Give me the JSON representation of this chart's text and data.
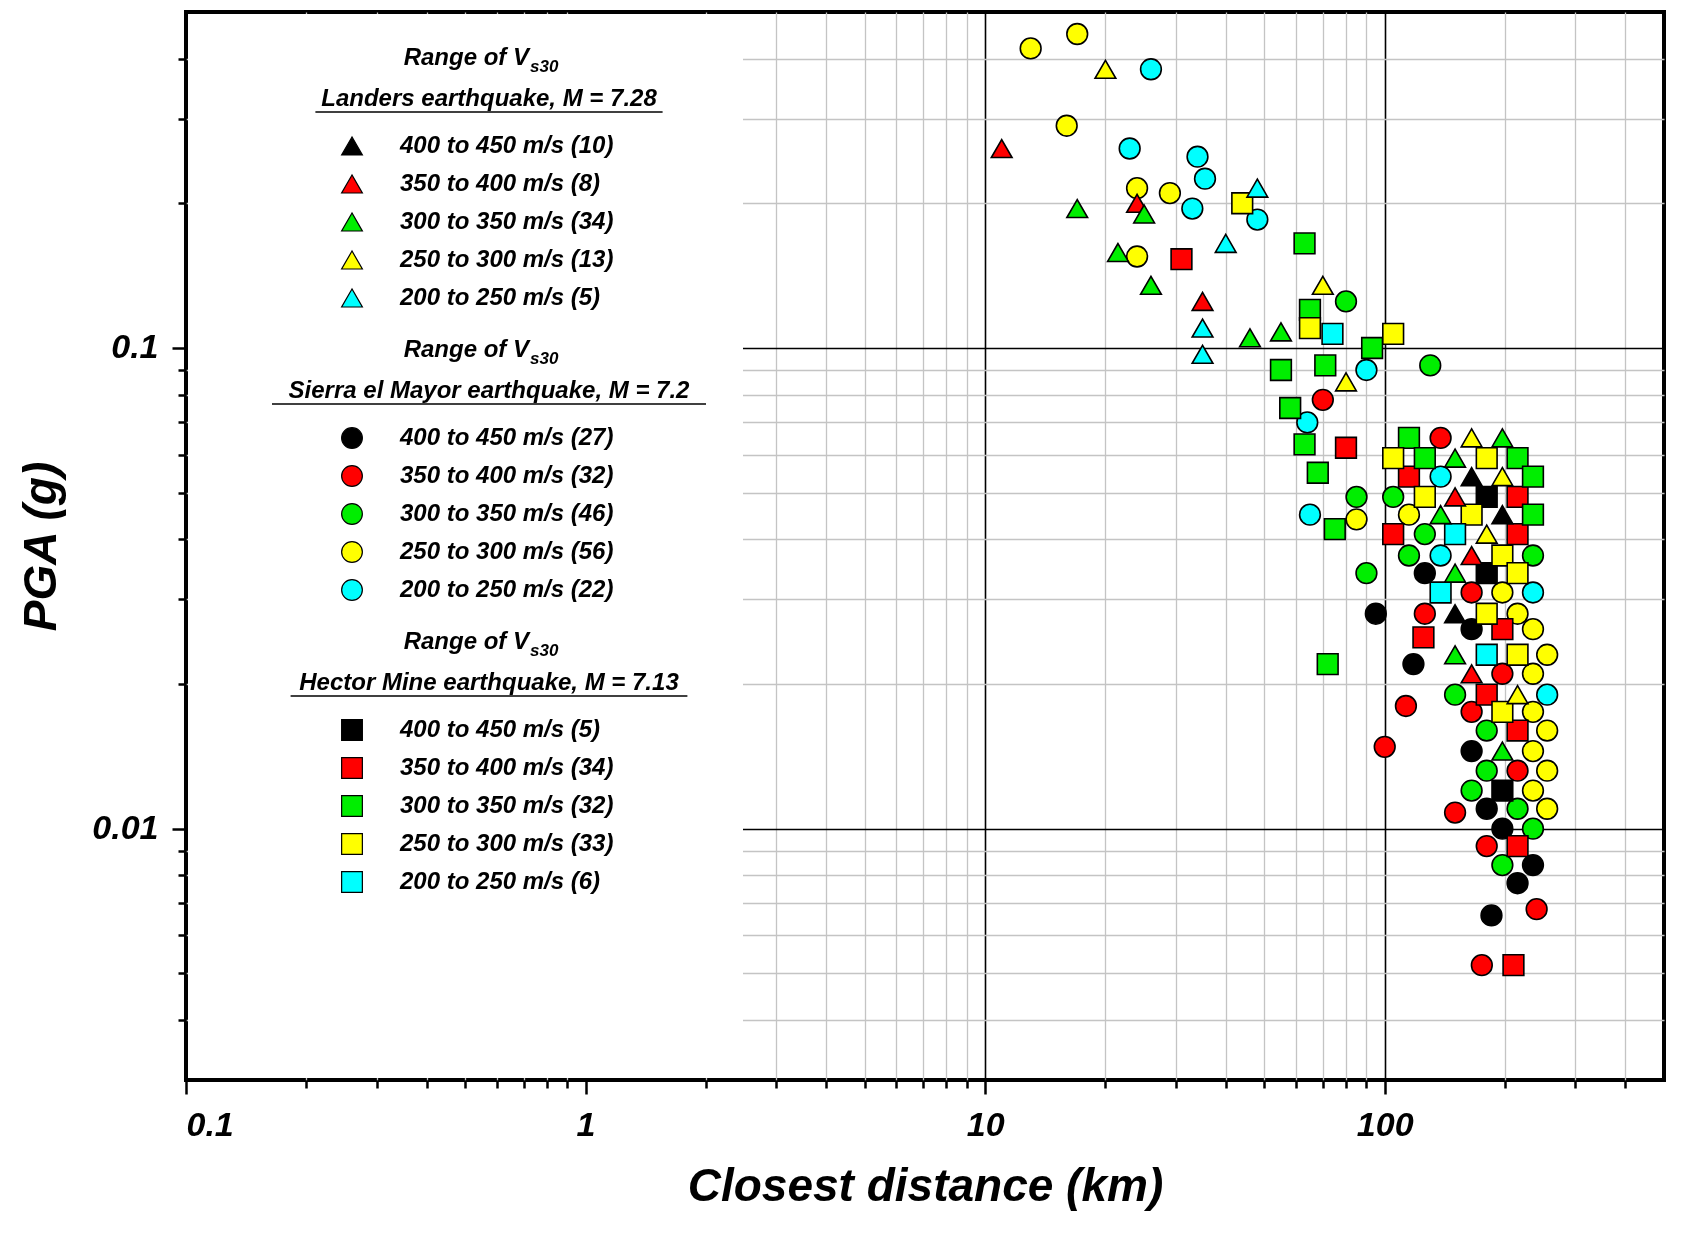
{
  "chart_data": {
    "type": "scatter",
    "xlabel": "Closest distance (km)",
    "ylabel": "PGA (g)",
    "log": "xy",
    "grid": true,
    "legend": "top left",
    "xlim": [
      0.1,
      500
    ],
    "ylim": [
      0.003,
      0.5
    ],
    "xticks": [
      0.1,
      {
        "value": 0.2,
        "label": null
      },
      {
        "value": 0.3,
        "label": null
      },
      {
        "value": 0.4,
        "label": null
      },
      {
        "value": 0.5,
        "label": null
      },
      {
        "value": 0.6,
        "label": null
      },
      {
        "value": 0.7,
        "label": null
      },
      {
        "value": 0.8,
        "label": null
      },
      {
        "value": 0.9,
        "label": null
      },
      1,
      {
        "value": 2,
        "label": null
      },
      {
        "value": 3,
        "label": null
      },
      {
        "value": 4,
        "label": null
      },
      {
        "value": 5,
        "label": null
      },
      {
        "value": 6,
        "label": null
      },
      {
        "value": 7,
        "label": null
      },
      {
        "value": 8,
        "label": null
      },
      {
        "value": 9,
        "label": null
      },
      10,
      {
        "value": 20,
        "label": null
      },
      {
        "value": 30,
        "label": null
      },
      {
        "value": 40,
        "label": null
      },
      {
        "value": 50,
        "label": null
      },
      {
        "value": 60,
        "label": null
      },
      {
        "value": 70,
        "label": null
      },
      {
        "value": 80,
        "label": null
      },
      {
        "value": 90,
        "label": null
      },
      100,
      {
        "value": 200,
        "label": null
      },
      {
        "value": 300,
        "label": null
      },
      {
        "value": 400,
        "label": null
      }
    ],
    "yticks": [
      {
        "value": 0.004,
        "label": null
      },
      {
        "value": 0.005,
        "label": null
      },
      {
        "value": 0.006,
        "label": null
      },
      {
        "value": 0.007,
        "label": null
      },
      {
        "value": 0.008,
        "label": null
      },
      {
        "value": 0.009,
        "label": null
      },
      0.01,
      {
        "value": 0.02,
        "label": null
      },
      {
        "value": 0.03,
        "label": null
      },
      {
        "value": 0.04,
        "label": null
      },
      {
        "value": 0.05,
        "label": null
      },
      {
        "value": 0.06,
        "label": null
      },
      {
        "value": 0.07,
        "label": null
      },
      {
        "value": 0.08,
        "label": null
      },
      {
        "value": 0.09,
        "label": null
      },
      0.1,
      {
        "value": 0.2,
        "label": null
      },
      {
        "value": 0.3,
        "label": null
      },
      {
        "value": 0.4,
        "label": null
      }
    ],
    "annotations": [
      "Range of V$_{s30}$",
      "Landers earthquake, M = 7.28",
      "Range of V$_{s30}$",
      "Sierra el Mayor earthquake, M = 7.2",
      "Range of V$_{s30}$",
      "Hector Mine earthquake, M = 7.13"
    ],
    "series": [
      {
        "name": "400 to 450 m/s (10)",
        "color": "#000000",
        "marker": "triangle",
        "x": [
          165,
          197,
          150
        ],
        "values": [
          0.054,
          0.045,
          0.028
        ]
      },
      {
        "name": "350 to 400 m/s (8)",
        "color": "#ff0000",
        "marker": "triangle",
        "x": [
          11,
          24,
          35,
          150,
          165,
          165
        ],
        "values": [
          0.26,
          0.2,
          0.125,
          0.049,
          0.037,
          0.021
        ]
      },
      {
        "name": "300 to 350 m/s (34)",
        "color": "#00ee00",
        "marker": "triangle",
        "x": [
          17,
          21.5,
          25,
          26,
          46,
          55,
          197,
          150,
          138,
          150,
          150,
          197
        ],
        "values": [
          0.195,
          0.158,
          0.19,
          0.135,
          0.105,
          0.108,
          0.065,
          0.059,
          0.045,
          0.034,
          0.023,
          0.0145
        ]
      },
      {
        "name": "250 to 300 m/s (13)",
        "color": "#ffff00",
        "marker": "triangle",
        "x": [
          20,
          70,
          80,
          165,
          197,
          180,
          215
        ],
        "values": [
          0.38,
          0.135,
          0.085,
          0.065,
          0.054,
          0.041,
          0.019
        ]
      },
      {
        "name": "200 to 250 m/s (5)",
        "color": "#00ffff",
        "marker": "triangle",
        "x": [
          35,
          35,
          40,
          48
        ],
        "values": [
          0.11,
          0.097,
          0.165,
          0.215
        ]
      },
      {
        "name": "400 to 450 m/s (27)",
        "color": "#000000",
        "marker": "circle",
        "x": [
          95,
          118,
          185,
          126,
          165,
          165,
          180,
          197,
          235,
          215
        ],
        "values": [
          0.028,
          0.022,
          0.0066,
          0.034,
          0.026,
          0.0145,
          0.011,
          0.01,
          0.0084,
          0.0077
        ]
      },
      {
        "name": "350 to 400 m/s (32)",
        "color": "#ff0000",
        "marker": "circle",
        "x": [
          70,
          100,
          113,
          150,
          175,
          240,
          138,
          165,
          126,
          197,
          165,
          215,
          180
        ],
        "values": [
          0.078,
          0.0148,
          0.018,
          0.0108,
          0.0052,
          0.0068,
          0.065,
          0.031,
          0.028,
          0.021,
          0.0175,
          0.0132,
          0.0092
        ]
      },
      {
        "name": "300 to 350 m/s (46)",
        "color": "#00ee00",
        "marker": "circle",
        "x": [
          80,
          130,
          90,
          85,
          105,
          126,
          115,
          235,
          150,
          180,
          180,
          165,
          215,
          235,
          197
        ],
        "values": [
          0.125,
          0.092,
          0.034,
          0.049,
          0.049,
          0.041,
          0.037,
          0.037,
          0.019,
          0.016,
          0.0132,
          0.012,
          0.011,
          0.01,
          0.0084
        ]
      },
      {
        "name": "250 to 300 m/s (56)",
        "color": "#ffff00",
        "marker": "circle",
        "x": [
          13,
          17,
          16,
          24,
          24,
          29,
          85,
          115,
          197,
          215,
          235,
          255,
          235,
          235,
          255,
          235,
          255,
          235,
          255
        ],
        "values": [
          0.42,
          0.45,
          0.29,
          0.215,
          0.155,
          0.21,
          0.044,
          0.045,
          0.031,
          0.028,
          0.026,
          0.023,
          0.021,
          0.0175,
          0.016,
          0.0145,
          0.0132,
          0.012,
          0.011
        ]
      },
      {
        "name": "200 to 250 m/s (22)",
        "color": "#00ffff",
        "marker": "circle",
        "x": [
          23,
          26,
          34,
          35.5,
          33,
          48,
          64,
          65,
          90,
          138,
          138,
          235,
          255
        ],
        "values": [
          0.26,
          0.38,
          0.25,
          0.225,
          0.195,
          0.185,
          0.07,
          0.045,
          0.09,
          0.054,
          0.037,
          0.031,
          0.019
        ]
      },
      {
        "name": "400 to 450 m/s (5)",
        "color": "#000000",
        "marker": "square",
        "x": [
          180,
          180,
          197
        ],
        "values": [
          0.049,
          0.034,
          0.012
        ]
      },
      {
        "name": "350 to 400 m/s (34)",
        "color": "#ff0000",
        "marker": "square",
        "x": [
          31,
          80,
          210,
          125,
          115,
          215,
          105,
          215,
          197,
          180,
          215,
          215
        ],
        "values": [
          0.153,
          0.062,
          0.0052,
          0.025,
          0.054,
          0.049,
          0.041,
          0.041,
          0.026,
          0.019,
          0.016,
          0.0092
        ]
      },
      {
        "name": "300 to 350 m/s (32)",
        "color": "#00ee00",
        "marker": "square",
        "x": [
          63,
          55,
          58,
          63,
          68,
          75,
          72,
          65,
          71,
          93,
          115,
          126,
          215,
          235,
          235
        ],
        "values": [
          0.165,
          0.09,
          0.075,
          0.063,
          0.055,
          0.042,
          0.022,
          0.12,
          0.092,
          0.1,
          0.065,
          0.059,
          0.059,
          0.054,
          0.045
        ]
      },
      {
        "name": "250 to 300 m/s (33)",
        "color": "#ffff00",
        "marker": "square",
        "x": [
          44,
          65,
          105,
          105,
          180,
          126,
          165,
          197,
          215,
          180,
          215,
          197
        ],
        "values": [
          0.2,
          0.11,
          0.107,
          0.059,
          0.059,
          0.049,
          0.045,
          0.037,
          0.034,
          0.028,
          0.023,
          0.0175
        ]
      },
      {
        "name": "200 to 250 m/s (6)",
        "color": "#00ffff",
        "marker": "square",
        "x": [
          74,
          150,
          138,
          180
        ],
        "values": [
          0.107,
          0.041,
          0.031,
          0.023
        ]
      }
    ]
  }
}
